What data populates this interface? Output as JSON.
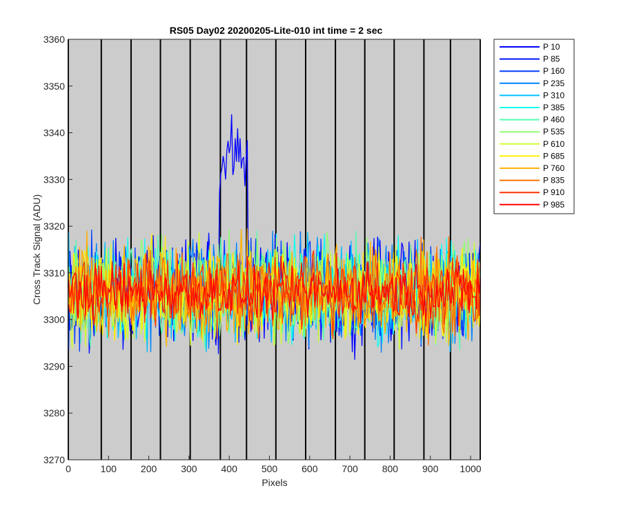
{
  "chart_data": {
    "type": "line",
    "title": "RS05 Day02 20200205-Lite-010 int time = 2 sec",
    "xlabel": "Pixels",
    "ylabel": "Cross Track Signal (ADU)",
    "xlim": [
      0,
      1024
    ],
    "ylim": [
      3270,
      3360
    ],
    "xticks": [
      0,
      100,
      200,
      300,
      400,
      500,
      600,
      700,
      800,
      900,
      1000
    ],
    "yticks": [
      3270,
      3280,
      3290,
      3300,
      3310,
      3320,
      3330,
      3340,
      3350,
      3360
    ],
    "background": "#cccccc",
    "grid": false,
    "legend_position": "outside-top-right",
    "vertical_lines_x": [
      0,
      82,
      156,
      229,
      303,
      378,
      443,
      516,
      590,
      664,
      737,
      810,
      884,
      950,
      1024
    ],
    "series": [
      {
        "name": "P 10",
        "color": "#0000ff",
        "mean": 3306,
        "spread": 7,
        "peak": {
          "x_start": 375,
          "x_end": 445,
          "mean": 3335
        }
      },
      {
        "name": "P 85",
        "color": "#0010ff",
        "mean": 3306,
        "spread": 7
      },
      {
        "name": "P 160",
        "color": "#0040ff",
        "mean": 3306,
        "spread": 7
      },
      {
        "name": "P 235",
        "color": "#0080ff",
        "mean": 3306,
        "spread": 7
      },
      {
        "name": "P 310",
        "color": "#00c0ff",
        "mean": 3306,
        "spread": 7
      },
      {
        "name": "P 385",
        "color": "#10ffef",
        "mean": 3306,
        "spread": 7
      },
      {
        "name": "P 460",
        "color": "#50ffaf",
        "mean": 3306,
        "spread": 7
      },
      {
        "name": "P 535",
        "color": "#90ff6f",
        "mean": 3306,
        "spread": 7
      },
      {
        "name": "P 610",
        "color": "#cfff30",
        "mean": 3306,
        "spread": 7
      },
      {
        "name": "P 685",
        "color": "#ffef00",
        "mean": 3306,
        "spread": 7
      },
      {
        "name": "P 760",
        "color": "#ffb000",
        "mean": 3306,
        "spread": 7
      },
      {
        "name": "P 835",
        "color": "#ff7000",
        "mean": 3306,
        "spread": 6
      },
      {
        "name": "P 910",
        "color": "#ff3000",
        "mean": 3306,
        "spread": 5
      },
      {
        "name": "P 985",
        "color": "#ff0000",
        "mean": 3306,
        "spread": 4
      }
    ]
  }
}
